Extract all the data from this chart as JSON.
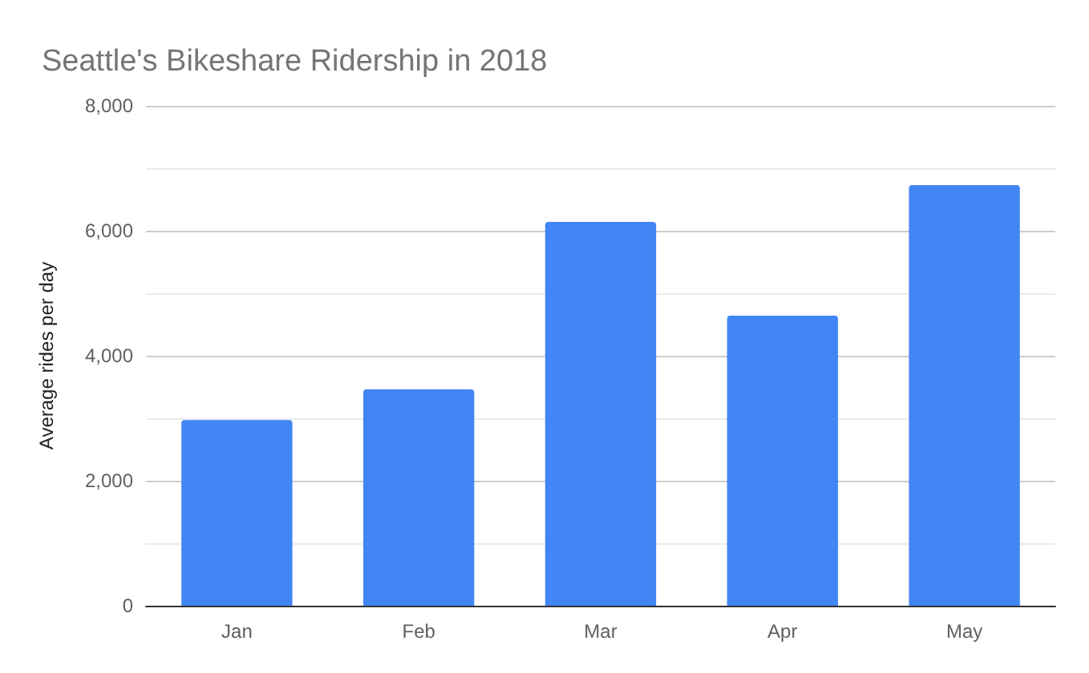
{
  "chart_data": {
    "type": "bar",
    "title": "Seattle's Bikeshare Ridership in 2018",
    "ylabel": "Average rides per day",
    "categories": [
      "Jan",
      "Feb",
      "Mar",
      "Apr",
      "May"
    ],
    "values": [
      2970,
      3460,
      6140,
      4640,
      6730
    ],
    "color": "#4285f4",
    "ylim": [
      0,
      8000
    ],
    "yticks": [
      0,
      {
        "value": 1000,
        "label": null
      },
      {
        "value": 2000,
        "label": "2,000"
      },
      {
        "value": 3000,
        "label": null
      },
      {
        "value": 4000,
        "label": "4,000"
      },
      {
        "value": 5000,
        "label": null
      },
      {
        "value": 6000,
        "label": "6,000"
      },
      {
        "value": 7000,
        "label": null
      },
      {
        "value": 8000,
        "label": "8,000"
      }
    ],
    "grid": "y"
  }
}
